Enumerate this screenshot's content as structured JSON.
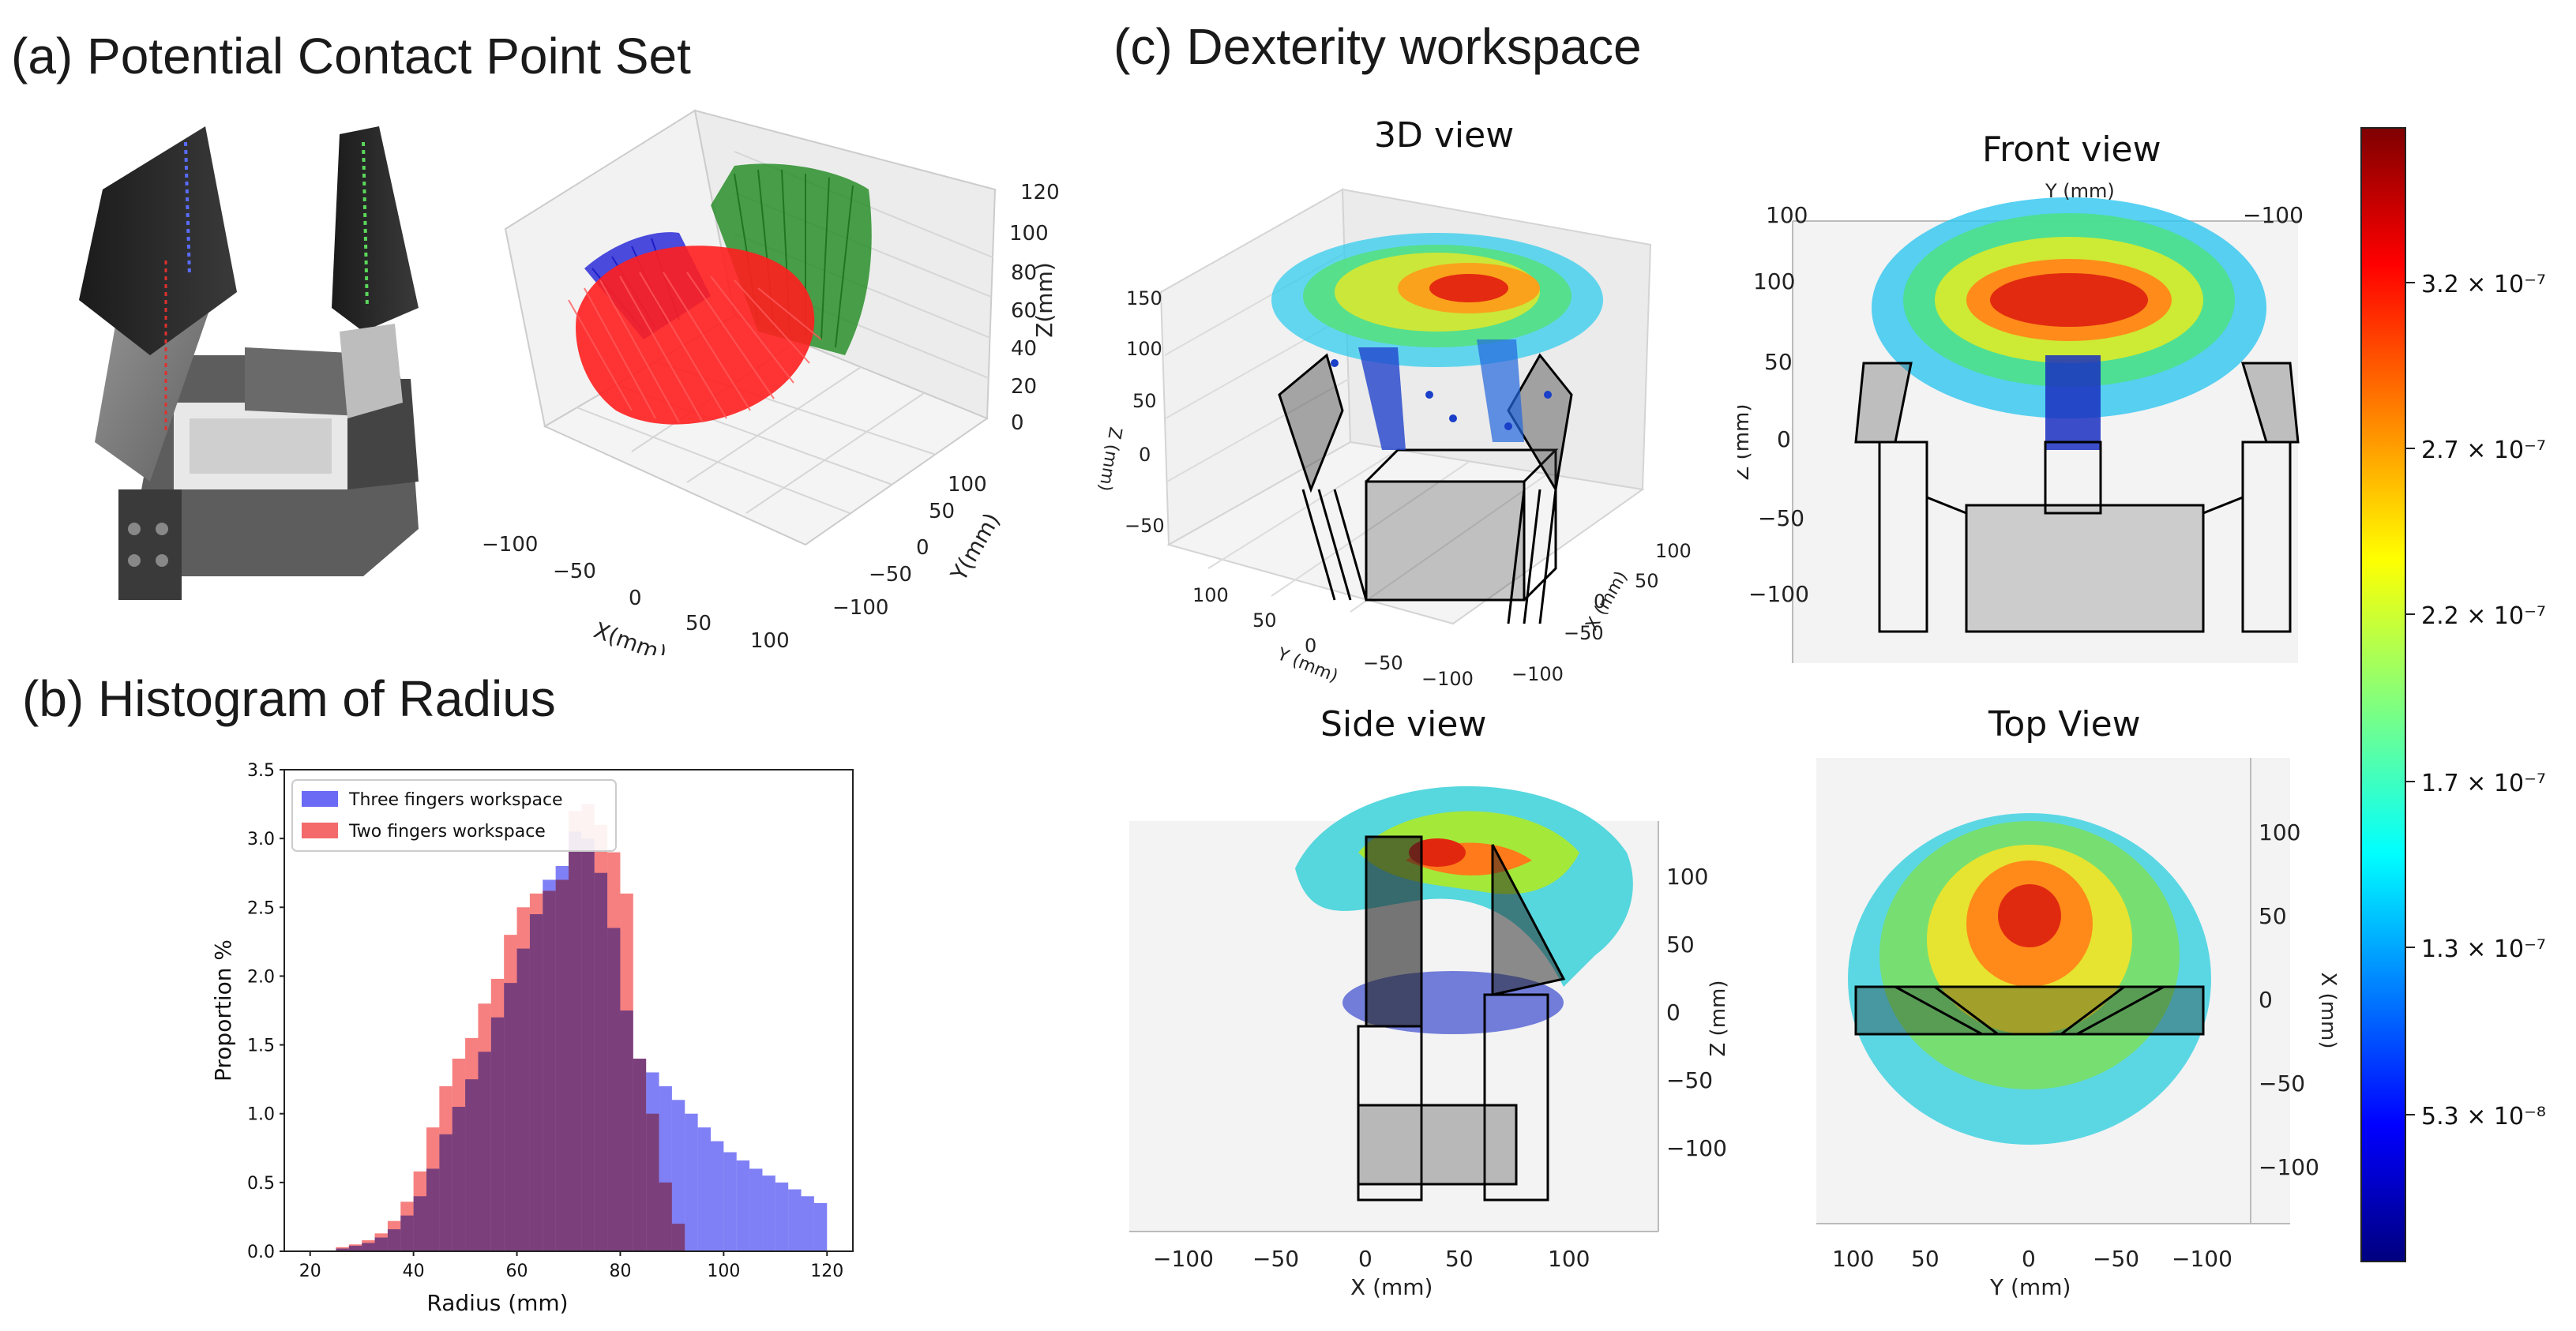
{
  "panels": {
    "a": {
      "title": "(a) Potential Contact Point Set"
    },
    "b": {
      "title": "(b) Histogram of Radius"
    },
    "c": {
      "title": "(c) Dexterity workspace"
    }
  },
  "views": {
    "v3d": {
      "title": "3D view"
    },
    "front": {
      "title": "Front view"
    },
    "side": {
      "title": "Side view"
    },
    "top": {
      "title": "Top View"
    }
  },
  "contact_plot": {
    "x_ticks": [
      "−100",
      "−50",
      "0",
      "50",
      "100"
    ],
    "y_ticks": [
      "100",
      "50",
      "0",
      "−50",
      "−100"
    ],
    "z_ticks": [
      "120",
      "100",
      "80",
      "60",
      "40",
      "20",
      "0"
    ],
    "xlabel": "X(mm)",
    "ylabel": "Y(mm)",
    "zlabel": "Z(mm)",
    "colors": {
      "finger_blue": "#1f1fd6",
      "finger_green": "#1f8a1f",
      "palm_red": "#ff1f1f"
    }
  },
  "chart_data": {
    "type": "bar",
    "title": "",
    "xlabel": "Radius (mm)",
    "ylabel": "Proportion %",
    "xlim": [
      15,
      125
    ],
    "ylim": [
      0,
      3.5
    ],
    "x_ticks": [
      20,
      40,
      60,
      80,
      100,
      120
    ],
    "y_ticks": [
      0.0,
      0.5,
      1.0,
      1.5,
      2.0,
      2.5,
      3.0,
      3.5
    ],
    "bin_width": 2.5,
    "legend": "top-left",
    "series": [
      {
        "name": "Three fingers workspace",
        "color": "#6a6af5",
        "bin_starts": [
          25,
          27.5,
          30,
          32.5,
          35,
          37.5,
          40,
          42.5,
          45,
          47.5,
          50,
          52.5,
          55,
          57.5,
          60,
          62.5,
          65,
          67.5,
          70,
          72.5,
          75,
          77.5,
          80,
          82.5,
          85,
          87.5,
          90,
          92.5,
          95,
          97.5,
          100,
          102.5,
          105,
          107.5,
          110,
          112.5,
          115,
          117.5
        ],
        "values": [
          0.02,
          0.04,
          0.06,
          0.1,
          0.16,
          0.26,
          0.4,
          0.6,
          0.85,
          1.05,
          1.25,
          1.45,
          1.7,
          1.95,
          2.2,
          2.45,
          2.7,
          2.8,
          3.05,
          3.0,
          2.75,
          2.35,
          1.75,
          1.4,
          1.3,
          1.2,
          1.1,
          1.0,
          0.9,
          0.8,
          0.72,
          0.66,
          0.6,
          0.55,
          0.5,
          0.45,
          0.4,
          0.35
        ]
      },
      {
        "name": "Two fingers workspace",
        "color": "#f46a6a",
        "bin_starts": [
          25,
          27.5,
          30,
          32.5,
          35,
          37.5,
          40,
          42.5,
          45,
          47.5,
          50,
          52.5,
          55,
          57.5,
          60,
          62.5,
          65,
          67.5,
          70,
          72.5,
          75,
          77.5,
          80,
          82.5,
          85,
          87.5,
          90
        ],
        "values": [
          0.03,
          0.05,
          0.08,
          0.13,
          0.22,
          0.36,
          0.58,
          0.9,
          1.2,
          1.4,
          1.55,
          1.8,
          1.98,
          2.3,
          2.5,
          2.6,
          2.62,
          2.7,
          3.2,
          3.25,
          3.1,
          2.9,
          2.6,
          1.4,
          1.0,
          0.5,
          0.2
        ]
      }
    ]
  },
  "dexterity": {
    "colorbar": {
      "labels": [
        "3.2 × 10⁻⁷",
        "2.7 × 10⁻⁷",
        "2.2 × 10⁻⁷",
        "1.7 × 10⁻⁷",
        "1.3 × 10⁻⁷",
        "5.3 × 10⁻⁸"
      ],
      "colormap": "jet"
    },
    "v3d": {
      "z_ticks": [
        "150",
        "100",
        "50",
        "0",
        "−50"
      ],
      "y_ticks": [
        "100",
        "50",
        "0",
        "−50",
        "−100"
      ],
      "x_ticks": [
        "100",
        "50",
        "0",
        "−50",
        "−100"
      ],
      "zlabel": "Z (mm)",
      "ylabel": "Y (mm)",
      "xlabel": "X (mm)"
    },
    "front": {
      "top_ticks": [
        "100",
        "−100"
      ],
      "top_label": "Y (mm)",
      "z_ticks": [
        "100",
        "50",
        "0",
        "−50",
        "−100"
      ],
      "zlabel": "Z (mm)"
    },
    "side": {
      "x_ticks": [
        "−100",
        "−50",
        "0",
        "50",
        "100"
      ],
      "xlabel": "X (mm)",
      "z_ticks": [
        "100",
        "50",
        "0",
        "−50",
        "−100"
      ],
      "zlabel": "Z (mm)"
    },
    "top": {
      "y_ticks": [
        "100",
        "50",
        "0",
        "−50",
        "−100"
      ],
      "ylabel": "Y (mm)",
      "x_ticks": [
        "100",
        "50",
        "0",
        "−50",
        "−100"
      ],
      "xlabel": "X (mm)"
    }
  }
}
